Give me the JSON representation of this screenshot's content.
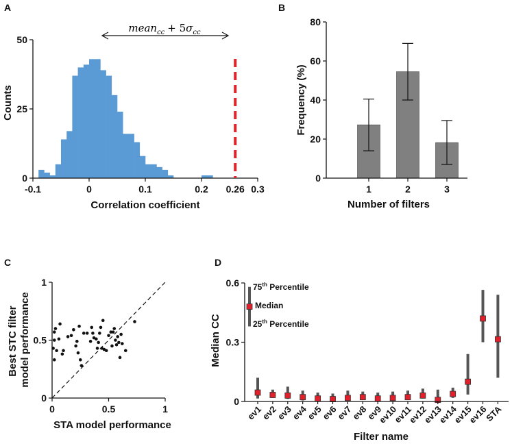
{
  "panel_letters": {
    "a": "A",
    "b": "B",
    "c": "C",
    "d": "D"
  },
  "chart_data": [
    {
      "panel": "A",
      "type": "bar",
      "subtype": "histogram",
      "xlabel": "Correlation coefficient",
      "ylabel": "Counts",
      "xlim": [
        -0.1,
        0.3
      ],
      "ylim": [
        0,
        50
      ],
      "x_ticks": [
        -0.1,
        0,
        0.1,
        0.2,
        0.3
      ],
      "x_tick_labels": [
        "-0.1",
        "0",
        "0.1",
        "0.2",
        "0.3"
      ],
      "y_ticks": [
        0,
        25,
        50
      ],
      "y_tick_labels": [
        "0",
        "25",
        "50"
      ],
      "bin_width": 0.01,
      "bin_start": [
        -0.09,
        -0.08,
        -0.07,
        -0.06,
        -0.05,
        -0.04,
        -0.03,
        -0.02,
        -0.01,
        0.0,
        0.01,
        0.02,
        0.03,
        0.04,
        0.05,
        0.06,
        0.07,
        0.08,
        0.09,
        0.1,
        0.11,
        0.12,
        0.13,
        0.14,
        0.15,
        0.16,
        0.17,
        0.18,
        0.19,
        0.2,
        0.21,
        0.22
      ],
      "counts": [
        3,
        2,
        1,
        5,
        14,
        17,
        37,
        40,
        41,
        43,
        43,
        39,
        37,
        30,
        24,
        16,
        16,
        13,
        8,
        5,
        5,
        4,
        3,
        1,
        0,
        0,
        0,
        0,
        0,
        1,
        1,
        0
      ],
      "color": "#5b9bd5",
      "threshold": {
        "value": 0.26,
        "label": "0.26",
        "color": "#e8202a"
      },
      "annotation": {
        "base": "mean",
        "subscript": "cc",
        "operator": "+ 5",
        "sigma": "σ",
        "sigma_subscript": "cc"
      }
    },
    {
      "panel": "B",
      "type": "bar",
      "categories": [
        "1",
        "2",
        "3"
      ],
      "values": [
        27.3,
        54.5,
        18.2
      ],
      "error_low": [
        14.0,
        40.0,
        7.0
      ],
      "error_high": [
        40.5,
        69.0,
        29.5
      ],
      "xlabel": "Number of filters",
      "ylabel": "Frequency (%)",
      "ylim": [
        0,
        80
      ],
      "y_ticks": [
        0,
        20,
        40,
        60,
        80
      ],
      "y_tick_labels": [
        "0",
        "20",
        "40",
        "60",
        "80"
      ],
      "color": "#808080"
    },
    {
      "panel": "C",
      "type": "scatter",
      "xlabel": "STA model performance",
      "ylabel": [
        "Best STC filter",
        "model performance"
      ],
      "xlim": [
        0,
        1
      ],
      "ylim": [
        0,
        1
      ],
      "x_ticks": [
        0,
        0.5,
        1
      ],
      "x_tick_labels": [
        "0",
        "0.5",
        "1"
      ],
      "y_ticks": [
        0,
        0.5,
        1
      ],
      "y_tick_labels": [
        "0",
        "0.5",
        "1"
      ],
      "reference_line": "identity (dashed)",
      "points": [
        [
          0.01,
          0.43
        ],
        [
          0.02,
          0.5
        ],
        [
          0.02,
          0.57
        ],
        [
          0.02,
          0.33
        ],
        [
          0.03,
          0.6
        ],
        [
          0.04,
          0.41
        ],
        [
          0.06,
          0.51
        ],
        [
          0.07,
          0.64
        ],
        [
          0.09,
          0.38
        ],
        [
          0.1,
          0.41
        ],
        [
          0.14,
          0.53
        ],
        [
          0.17,
          0.54
        ],
        [
          0.19,
          0.59
        ],
        [
          0.21,
          0.45
        ],
        [
          0.22,
          0.49
        ],
        [
          0.23,
          0.39
        ],
        [
          0.24,
          0.62
        ],
        [
          0.25,
          0.33
        ],
        [
          0.26,
          0.28
        ],
        [
          0.28,
          0.56
        ],
        [
          0.31,
          0.56
        ],
        [
          0.34,
          0.49
        ],
        [
          0.35,
          0.61
        ],
        [
          0.36,
          0.56
        ],
        [
          0.37,
          0.52
        ],
        [
          0.39,
          0.51
        ],
        [
          0.4,
          0.43
        ],
        [
          0.41,
          0.48
        ],
        [
          0.42,
          0.56
        ],
        [
          0.43,
          0.61
        ],
        [
          0.44,
          0.43
        ],
        [
          0.45,
          0.67
        ],
        [
          0.46,
          0.42
        ],
        [
          0.48,
          0.41
        ],
        [
          0.5,
          0.54
        ],
        [
          0.52,
          0.57
        ],
        [
          0.53,
          0.45
        ],
        [
          0.54,
          0.57
        ],
        [
          0.55,
          0.6
        ],
        [
          0.56,
          0.5
        ],
        [
          0.57,
          0.46
        ],
        [
          0.58,
          0.53
        ],
        [
          0.59,
          0.48
        ],
        [
          0.6,
          0.35
        ],
        [
          0.61,
          0.55
        ],
        [
          0.62,
          0.47
        ],
        [
          0.65,
          0.41
        ],
        [
          0.73,
          0.66
        ]
      ]
    },
    {
      "panel": "D",
      "type": "box-range",
      "xlabel": "Filter name",
      "ylabel": "Median CC",
      "ylim": [
        0,
        0.6
      ],
      "y_ticks": [
        0,
        0.3,
        0.6
      ],
      "y_tick_labels": [
        "0",
        "0.3",
        "0.6"
      ],
      "categories": [
        "ev1",
        "ev2",
        "ev3",
        "ev4",
        "ev5",
        "ev6",
        "ev7",
        "ev8",
        "ev9",
        "ev10",
        "ev11",
        "ev12",
        "ev13",
        "ev14",
        "ev15",
        "ev16",
        "STA"
      ],
      "median": [
        0.045,
        0.033,
        0.03,
        0.022,
        0.015,
        0.012,
        0.018,
        0.022,
        0.015,
        0.018,
        0.022,
        0.03,
        0.008,
        0.038,
        0.1,
        0.42,
        0.315
      ],
      "p25": [
        0.015,
        0.018,
        0.013,
        0.005,
        0.003,
        0.0,
        0.005,
        0.008,
        0.0,
        0.003,
        0.008,
        0.015,
        0.0,
        0.018,
        0.035,
        0.3,
        0.12
      ],
      "p75": [
        0.12,
        0.06,
        0.075,
        0.055,
        0.045,
        0.04,
        0.055,
        0.05,
        0.045,
        0.05,
        0.055,
        0.065,
        0.06,
        0.07,
        0.24,
        0.565,
        0.54
      ],
      "legend": {
        "p75": "75",
        "p75_suffix": "th",
        "p75_word": " Percentile",
        "median": "Median",
        "p25": "25",
        "p25_suffix": "th",
        "p25_word": " Percentile",
        "example_median": 0.48,
        "example_p75": 0.58,
        "example_p25": 0.38
      },
      "bar_color": "#555555",
      "marker_color": "#e0202a"
    }
  ]
}
